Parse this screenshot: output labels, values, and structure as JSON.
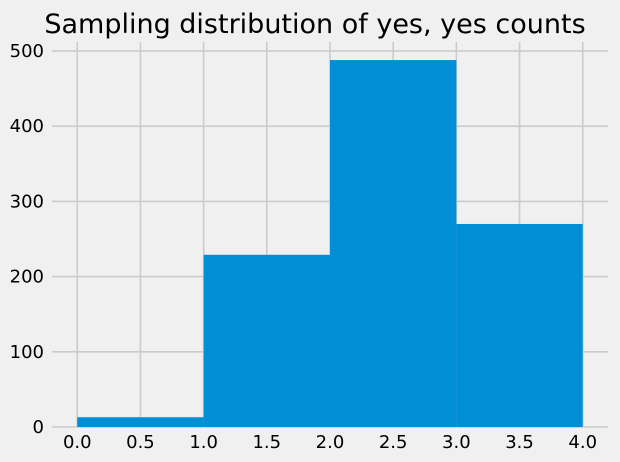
{
  "chart_data": {
    "type": "bar",
    "title": "Sampling distribution of yes, yes counts",
    "xlabel": "",
    "ylabel": "",
    "bins": [
      {
        "x0": 0,
        "x1": 1,
        "value": 13
      },
      {
        "x0": 1,
        "x1": 2,
        "value": 229
      },
      {
        "x0": 2,
        "x1": 3,
        "value": 488
      },
      {
        "x0": 3,
        "x1": 4,
        "value": 270
      }
    ],
    "xlim": [
      -0.2,
      4.2
    ],
    "ylim": [
      0,
      512
    ],
    "xticks": [
      0.0,
      0.5,
      1.0,
      1.5,
      2.0,
      2.5,
      3.0,
      3.5,
      4.0
    ],
    "xtick_labels": [
      "0.0",
      "0.5",
      "1.0",
      "1.5",
      "2.0",
      "2.5",
      "3.0",
      "3.5",
      "4.0"
    ],
    "yticks": [
      0,
      100,
      200,
      300,
      400,
      500
    ],
    "ytick_labels": [
      "0",
      "100",
      "200",
      "300",
      "400",
      "500"
    ],
    "grid": true,
    "legend": "none"
  },
  "colors": {
    "background": "#f0f0f0",
    "grid": "#cbcbcb",
    "bar": "#008fd5"
  }
}
